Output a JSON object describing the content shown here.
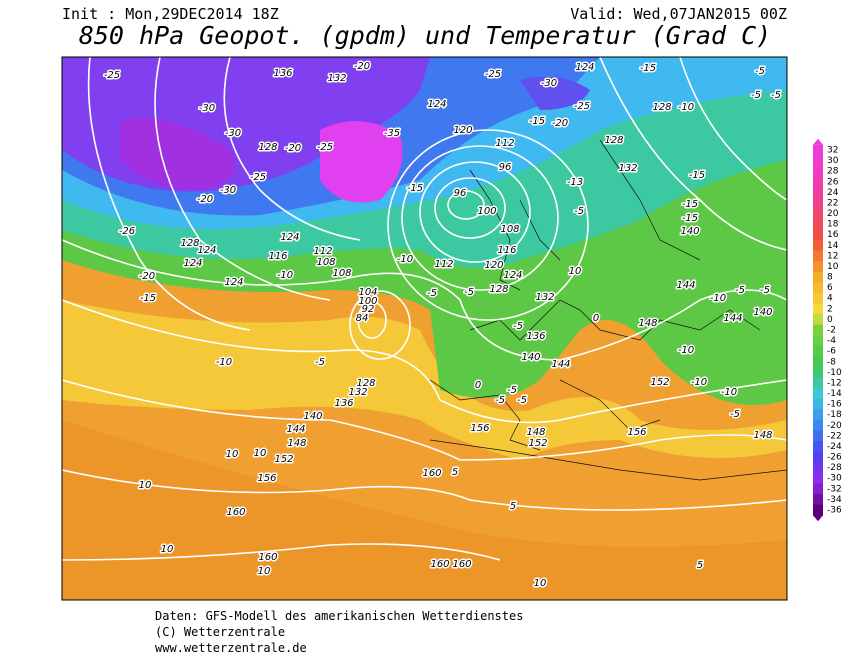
{
  "header": {
    "init": "Init : Mon,29DEC2014 18Z",
    "valid": "Valid: Wed,07JAN2015 00Z",
    "title": "850 hPa Geopot. (gpdm) und Temperatur (Grad C)"
  },
  "colorbar": {
    "ticks": [
      32,
      30,
      28,
      26,
      24,
      22,
      20,
      18,
      16,
      14,
      12,
      10,
      8,
      6,
      4,
      2,
      0,
      -2,
      -4,
      -6,
      -8,
      -10,
      -12,
      -14,
      -16,
      -18,
      -20,
      -22,
      -24,
      -26,
      -28,
      -30,
      -32,
      -34,
      -36
    ]
  },
  "map_labels": [
    "-25",
    "136",
    "-20",
    "132",
    "-25",
    "-30",
    "124",
    "-15",
    "-5",
    "-5",
    "-5",
    "-30",
    "-30",
    "128",
    "-20",
    "-25",
    "-35",
    "124",
    "120",
    "112",
    "-25",
    "-20",
    "128",
    "128",
    "-10",
    "-15",
    "-15",
    "96",
    "96",
    "-13",
    "132",
    "-15",
    "-30",
    "-25",
    "-20",
    "-15",
    "-15",
    "140",
    "-5",
    "-26",
    "128",
    "124",
    "124",
    "116",
    "112",
    "108",
    "124",
    "108",
    "-10",
    "-10",
    "112",
    "100",
    "108",
    "116",
    "120",
    "124",
    "128",
    "132",
    "10",
    "144",
    "-10",
    "-5",
    "-5",
    "140",
    "144",
    "148",
    "-10",
    "-20",
    "-15",
    "124",
    "104",
    "100",
    "92",
    "84",
    "-5",
    "-5",
    "-5",
    "136",
    "140",
    "144",
    "0",
    "152",
    "-10",
    "-10",
    "-10",
    "-5",
    "128",
    "132",
    "136",
    "140",
    "144",
    "148",
    "152",
    "10",
    "10",
    "156",
    "156",
    "148",
    "152",
    "156",
    "160",
    "5",
    "10",
    "160",
    "5",
    "10",
    "160",
    "10",
    "160",
    "160",
    "5",
    "10",
    "-5",
    "148",
    "-5",
    "0",
    "-5",
    "-5"
  ],
  "footer": {
    "line1": "Daten: GFS-Modell des amerikanischen Wetterdienstes",
    "line2": "(C) Wetterzentrale",
    "line3": "www.wetterzentrale.de"
  }
}
